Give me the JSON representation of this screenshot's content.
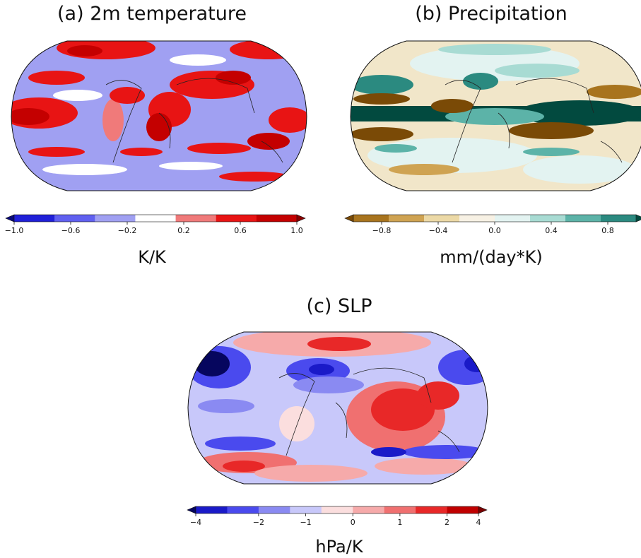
{
  "panels": {
    "a": {
      "title": "(a) 2m temperature",
      "unit": "K/K"
    },
    "b": {
      "title": "(b) Precipitation",
      "unit": "mm/(day*K)"
    },
    "c": {
      "title": "(c) SLP",
      "unit": "hPa/K"
    }
  },
  "chart_data": [
    {
      "type": "heatmap",
      "title": "(a) 2m temperature",
      "colorbar_label": "K/K",
      "colorbar_range": [
        -1.0,
        1.0
      ],
      "colorbar_ticks": [
        "−1.0",
        "−0.6",
        "−0.2",
        "0.2",
        "0.6",
        "1.0"
      ],
      "colors": [
        "#0a0a7a",
        "#2020d8",
        "#6060f0",
        "#a0a0f2",
        "#ffffff",
        "#f07a7a",
        "#e81414",
        "#c40000",
        "#8a0000"
      ],
      "projection": "Robinson global map",
      "features": "Warming (red, up to ~1 K/K) over Arctic, land and tropics; weak cooling (light blue, ~-0.2 K/K) over most oceans."
    },
    {
      "type": "heatmap",
      "title": "(b) Precipitation",
      "colorbar_label": "mm/(day*K)",
      "colorbar_range": [
        -1.0,
        1.0
      ],
      "colorbar_ticks": [
        "−0.8",
        "−0.4",
        "0.0",
        "0.4",
        "0.8"
      ],
      "colors": [
        "#7a4a06",
        "#a8741e",
        "#cfa352",
        "#ecd9a6",
        "#f7f1e4",
        "#e3f3f1",
        "#a8dbd3",
        "#5cb3a8",
        "#2b8a80",
        "#024a3f"
      ],
      "projection": "Robinson global map",
      "features": "Strong increase (dark green) along the equatorial band; drying (brown) in the subtropics."
    },
    {
      "type": "heatmap",
      "title": "(c) SLP",
      "colorbar_label": "hPa/K",
      "colorbar_range": [
        -4,
        4
      ],
      "colorbar_ticks": [
        "−4",
        "−2",
        "−1",
        "0",
        "1",
        "2",
        "4"
      ],
      "colors": [
        "#06065e",
        "#1a1ac8",
        "#4a4aee",
        "#8a8af2",
        "#c8c8fa",
        "#fbdede",
        "#f6aaaa",
        "#f07070",
        "#e82828",
        "#c00000",
        "#7a0000"
      ],
      "projection": "Robinson global map",
      "features": "Decrease (blue) over North Pacific and Southern Ocean bands; increase (red) over Eurasia, Indian Ocean and subtropics."
    }
  ]
}
